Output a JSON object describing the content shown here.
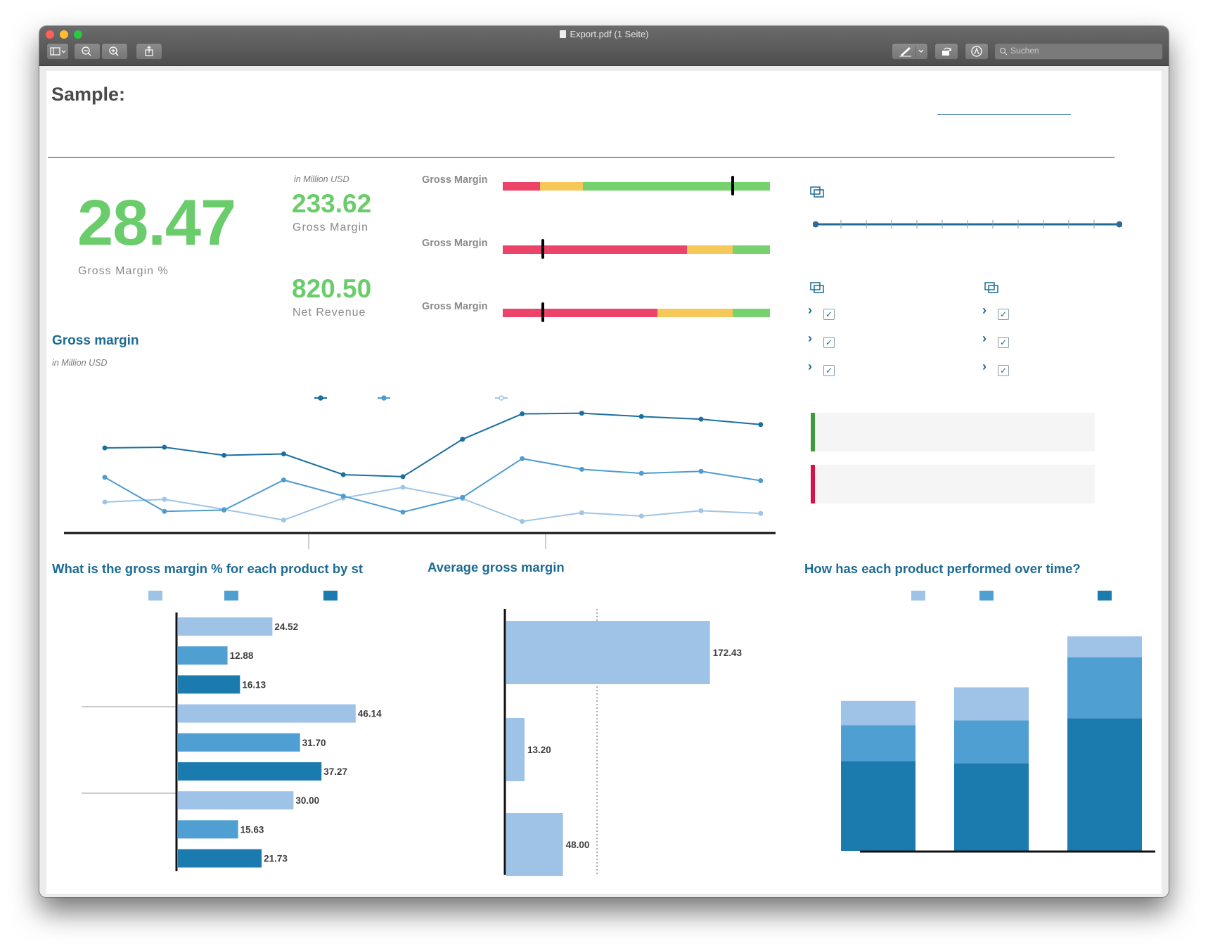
{
  "window": {
    "title": "Export.pdf (1 Seite)",
    "search_placeholder": "Suchen",
    "toolbar": {
      "sidebar_icon": "sidebar-icon",
      "zoom_out_icon": "zoom-out-icon",
      "zoom_in_icon": "zoom-in-icon",
      "share_icon": "share-icon",
      "markup_icon": "pen-icon",
      "rotate_icon": "rotate-icon",
      "annotate_icon": "annotate-icon"
    }
  },
  "header": {
    "title": "Sample:"
  },
  "kpis": {
    "main_value": "28.47",
    "main_label": "Gross Margin %",
    "unit_note": "in Million USD",
    "gross_margin_value": "233.62",
    "gross_margin_label": "Gross Margin",
    "net_revenue_value": "820.50",
    "net_revenue_label": "Net Revenue"
  },
  "bullets": {
    "items": [
      {
        "label": "Gross Margin",
        "bands": [
          0.14,
          0.16,
          0.7
        ],
        "marker": 0.86
      },
      {
        "label": "Gross Margin",
        "bands": [
          0.69,
          0.17,
          0.14
        ],
        "marker": 0.15
      },
      {
        "label": "Gross Margin",
        "bands": [
          0.58,
          0.28,
          0.14
        ],
        "marker": 0.15
      }
    ],
    "colors": {
      "red": "#ec4468",
      "yellow": "#f5c859",
      "green": "#76d16f",
      "marker": "#000000"
    }
  },
  "line_chart": {
    "title": "Gross margin",
    "subtitle": "in Million USD"
  },
  "bar_chart_1": {
    "title": "What is the gross margin % for each product by st"
  },
  "bar_chart_2": {
    "title": "Average gross margin"
  },
  "stacked_chart": {
    "title": "How has each product performed over time?"
  },
  "colors": {
    "light": "#9ec3e6",
    "mid": "#509fd3",
    "dark": "#1b7bae",
    "teal": "#1d6b94"
  },
  "chart_data": [
    {
      "type": "line",
      "title": "Gross margin",
      "subtitle": "in Million USD",
      "x": [
        1,
        2,
        3,
        4,
        5,
        6,
        7,
        8,
        9,
        10,
        11,
        12
      ],
      "series": [
        {
          "name": "",
          "color": "#1b6fa0",
          "values": [
            22.0,
            22.1,
            20.9,
            21.1,
            18.0,
            17.7,
            23.3,
            27.1,
            27.2,
            26.7,
            26.3,
            25.5
          ]
        },
        {
          "name": "",
          "color": "#4e9bd0",
          "values": [
            17.6,
            12.5,
            12.7,
            17.2,
            14.8,
            12.4,
            14.6,
            20.4,
            18.8,
            18.2,
            18.5,
            17.1
          ]
        },
        {
          "name": "",
          "color": "#9fc4e5",
          "values": [
            13.9,
            14.3,
            12.8,
            11.2,
            14.5,
            16.1,
            14.4,
            11.0,
            12.3,
            11.8,
            12.6,
            12.2
          ]
        }
      ],
      "ylim": [
        10,
        30
      ]
    },
    {
      "type": "bar",
      "orientation": "horizontal",
      "title": "What is the gross margin % for each product by st",
      "series_colors": [
        "#9ec3e6",
        "#509fd3",
        "#1b7bae"
      ],
      "values": [
        24.52,
        12.88,
        16.13,
        46.14,
        31.7,
        37.27,
        30.0,
        15.63,
        21.73
      ],
      "labels": [
        "24.52",
        "12.88",
        "16.13",
        "46.14",
        "31.70",
        "37.27",
        "30.00",
        "15.63",
        "21.73"
      ],
      "xlim": [
        0,
        60
      ]
    },
    {
      "type": "bar",
      "orientation": "horizontal",
      "title": "Average gross margin",
      "values": [
        172.43,
        13.2,
        48.0
      ],
      "labels": [
        "172.43",
        "13.20",
        "48.00"
      ],
      "reference_line": 78,
      "xlim": [
        0,
        210
      ]
    },
    {
      "type": "bar",
      "stacked": true,
      "title": "How has each product performed over time?",
      "categories": [
        "",
        "",
        ""
      ],
      "series": [
        {
          "name": "",
          "color": "#1b7bae",
          "values": [
            125,
            122,
            185
          ]
        },
        {
          "name": "",
          "color": "#509fd3",
          "values": [
            50,
            60,
            85
          ]
        },
        {
          "name": "",
          "color": "#9ec3e6",
          "values": [
            34,
            46,
            29
          ]
        }
      ],
      "ylim": [
        0,
        300
      ]
    }
  ]
}
